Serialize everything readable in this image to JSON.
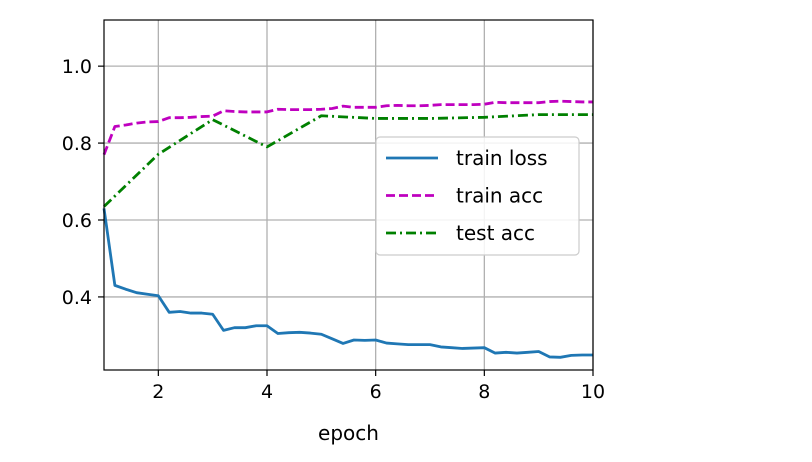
{
  "chart_data": {
    "type": "line",
    "title": "",
    "xlabel": "epoch",
    "ylabel": "",
    "xlim": [
      1,
      10
    ],
    "ylim": [
      0.21,
      1.12
    ],
    "grid": true,
    "legend_position": "center-right",
    "xticks": [
      2,
      4,
      6,
      8,
      10
    ],
    "xtick_labels": [
      "2",
      "4",
      "6",
      "8",
      "10"
    ],
    "yticks": [
      0.4,
      0.6,
      0.8,
      1.0
    ],
    "ytick_labels": [
      "0.4",
      "0.6",
      "0.8",
      "1.0"
    ],
    "series": [
      {
        "name": "train loss",
        "color": "#1f77b4",
        "style": "solid",
        "x": [
          1.0,
          1.2,
          1.4,
          1.6,
          1.8,
          2.0,
          2.2,
          2.4,
          2.6,
          2.8,
          3.0,
          3.2,
          3.4,
          3.6,
          3.8,
          4.0,
          4.2,
          4.4,
          4.6,
          4.8,
          5.0,
          5.2,
          5.4,
          5.6,
          5.8,
          6.0,
          6.2,
          6.4,
          6.6,
          6.8,
          7.0,
          7.2,
          7.4,
          7.6,
          7.8,
          8.0,
          8.2,
          8.4,
          8.6,
          8.8,
          9.0,
          9.2,
          9.4,
          9.6,
          9.8,
          10.0
        ],
        "y": [
          0.63,
          0.43,
          0.42,
          0.411,
          0.407,
          0.403,
          0.36,
          0.362,
          0.358,
          0.358,
          0.355,
          0.313,
          0.32,
          0.32,
          0.325,
          0.325,
          0.305,
          0.307,
          0.308,
          0.306,
          0.303,
          0.291,
          0.279,
          0.288,
          0.287,
          0.288,
          0.28,
          0.278,
          0.276,
          0.276,
          0.276,
          0.27,
          0.268,
          0.266,
          0.267,
          0.268,
          0.254,
          0.256,
          0.254,
          0.256,
          0.258,
          0.244,
          0.243,
          0.248,
          0.249,
          0.249
        ]
      },
      {
        "name": "train acc",
        "color": "#bf00bf",
        "style": "dashed",
        "x": [
          1.0,
          1.2,
          1.4,
          1.6,
          1.8,
          2.0,
          2.2,
          2.4,
          2.6,
          2.8,
          3.0,
          3.2,
          3.4,
          3.6,
          3.8,
          4.0,
          4.2,
          4.4,
          4.6,
          4.8,
          5.0,
          5.2,
          5.4,
          5.6,
          5.8,
          6.0,
          6.2,
          6.4,
          6.6,
          6.8,
          7.0,
          7.2,
          7.4,
          7.6,
          7.8,
          8.0,
          8.2,
          8.4,
          8.6,
          8.8,
          9.0,
          9.2,
          9.4,
          9.6,
          9.8,
          10.0
        ],
        "y": [
          0.77,
          0.843,
          0.847,
          0.852,
          0.855,
          0.856,
          0.866,
          0.866,
          0.867,
          0.869,
          0.87,
          0.884,
          0.882,
          0.881,
          0.881,
          0.881,
          0.888,
          0.887,
          0.887,
          0.887,
          0.888,
          0.89,
          0.896,
          0.893,
          0.893,
          0.893,
          0.897,
          0.898,
          0.897,
          0.897,
          0.898,
          0.9,
          0.9,
          0.9,
          0.9,
          0.901,
          0.906,
          0.905,
          0.905,
          0.905,
          0.905,
          0.908,
          0.909,
          0.908,
          0.907,
          0.907
        ]
      },
      {
        "name": "test acc",
        "color": "#008000",
        "style": "dashdot",
        "x": [
          1,
          2,
          3,
          4,
          5,
          6,
          7,
          8,
          9,
          10
        ],
        "y": [
          0.635,
          0.771,
          0.861,
          0.79,
          0.871,
          0.864,
          0.864,
          0.867,
          0.874,
          0.874
        ]
      }
    ]
  }
}
